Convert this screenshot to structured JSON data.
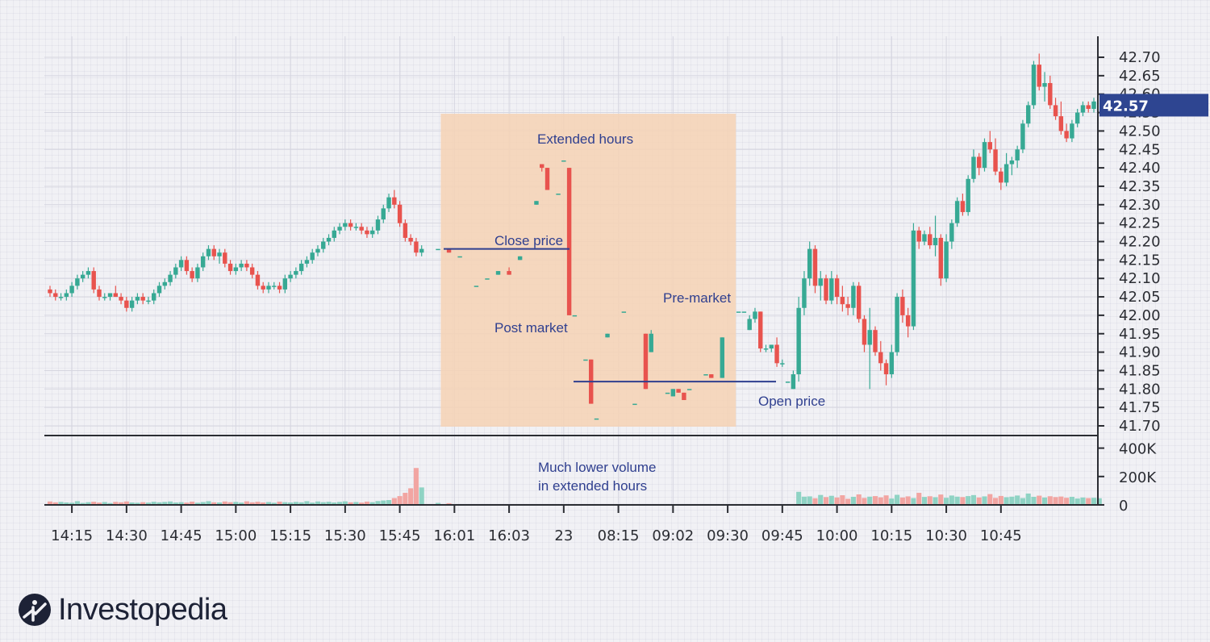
{
  "brand": {
    "name": "Investopedia",
    "logo_icon": "investopedia-logo-icon"
  },
  "colors": {
    "up": "#37a994",
    "down": "#e8534e",
    "up_volume": "#8fd3c4",
    "down_volume": "#f2a5a2",
    "extended_band": "#f6d2b4",
    "annotation": "#2f3f8f",
    "last_price_bg": "#2e4591"
  },
  "chart_data": {
    "type": "candlestick",
    "title": "",
    "xlabel": "",
    "ylabel": "",
    "ylim": [
      41.68,
      42.74
    ],
    "y_ticks": [
      "42.70",
      "42.65",
      "42.60",
      "42.55",
      "42.50",
      "42.45",
      "42.40",
      "42.35",
      "42.30",
      "42.25",
      "42.20",
      "42.15",
      "42.10",
      "42.05",
      "42.00",
      "41.95",
      "41.90",
      "41.85",
      "41.80",
      "41.75",
      "41.70"
    ],
    "volume_ticks": [
      "400K",
      "200K",
      "0"
    ],
    "volume_ylim": [
      0,
      520000
    ],
    "x_ticks": [
      {
        "label": "14:15",
        "index": 4
      },
      {
        "label": "14:30",
        "index": 14
      },
      {
        "label": "14:45",
        "index": 24
      },
      {
        "label": "15:00",
        "index": 34
      },
      {
        "label": "15:15",
        "index": 44
      },
      {
        "label": "15:30",
        "index": 54
      },
      {
        "label": "15:45",
        "index": 64
      },
      {
        "label": "16:01",
        "index": 74
      },
      {
        "label": "16:03",
        "index": 84
      },
      {
        "label": "23",
        "index": 94
      },
      {
        "label": "08:15",
        "index": 104
      },
      {
        "label": "09:02",
        "index": 114
      },
      {
        "label": "09:30",
        "index": 124
      },
      {
        "label": "09:45",
        "index": 134
      },
      {
        "label": "10:00",
        "index": 144
      },
      {
        "label": "10:15",
        "index": 154
      },
      {
        "label": "10:30",
        "index": 164
      },
      {
        "label": "10:45",
        "index": 174
      }
    ],
    "last_price": "42.57",
    "close_price": 42.18,
    "open_price": 41.82,
    "extended_hours": {
      "start_index": 71.5,
      "end_index": 125.5
    },
    "annotations": {
      "extended_hours": "Extended hours",
      "close_price": "Close price",
      "post_market": "Post market",
      "pre_market": "Pre-market",
      "open_price": "Open price",
      "volume_note_line1": "Much lower volume",
      "volume_note_line2": "in extended hours"
    },
    "ohlc": [
      [
        42.07,
        42.08,
        42.05,
        42.06
      ],
      [
        42.06,
        42.07,
        42.04,
        42.05
      ],
      [
        42.05,
        42.06,
        42.04,
        42.05
      ],
      [
        42.05,
        42.07,
        42.04,
        42.06
      ],
      [
        42.06,
        42.09,
        42.05,
        42.08
      ],
      [
        42.08,
        42.11,
        42.07,
        42.1
      ],
      [
        42.1,
        42.12,
        42.09,
        42.11
      ],
      [
        42.11,
        42.13,
        42.1,
        42.12
      ],
      [
        42.12,
        42.13,
        42.06,
        42.07
      ],
      [
        42.07,
        42.08,
        42.04,
        42.05
      ],
      [
        42.05,
        42.06,
        42.04,
        42.05
      ],
      [
        42.05,
        42.06,
        42.04,
        42.06
      ],
      [
        42.06,
        42.08,
        42.05,
        42.05
      ],
      [
        42.05,
        42.06,
        42.03,
        42.04
      ],
      [
        42.04,
        42.05,
        42.01,
        42.02
      ],
      [
        42.02,
        42.05,
        42.01,
        42.04
      ],
      [
        42.04,
        42.06,
        42.03,
        42.05
      ],
      [
        42.05,
        42.06,
        42.03,
        42.04
      ],
      [
        42.04,
        42.05,
        42.03,
        42.04
      ],
      [
        42.04,
        42.07,
        42.03,
        42.06
      ],
      [
        42.06,
        42.09,
        42.05,
        42.08
      ],
      [
        42.08,
        42.1,
        42.07,
        42.09
      ],
      [
        42.09,
        42.12,
        42.08,
        42.11
      ],
      [
        42.11,
        42.14,
        42.1,
        42.13
      ],
      [
        42.13,
        42.16,
        42.12,
        42.15
      ],
      [
        42.15,
        42.16,
        42.11,
        42.12
      ],
      [
        42.12,
        42.13,
        42.09,
        42.1
      ],
      [
        42.1,
        42.14,
        42.09,
        42.13
      ],
      [
        42.13,
        42.17,
        42.12,
        42.16
      ],
      [
        42.16,
        42.19,
        42.15,
        42.18
      ],
      [
        42.18,
        42.19,
        42.15,
        42.16
      ],
      [
        42.16,
        42.18,
        42.14,
        42.17
      ],
      [
        42.17,
        42.18,
        42.13,
        42.14
      ],
      [
        42.14,
        42.15,
        42.11,
        42.12
      ],
      [
        42.12,
        42.14,
        42.11,
        42.13
      ],
      [
        42.13,
        42.15,
        42.12,
        42.14
      ],
      [
        42.14,
        42.15,
        42.12,
        42.13
      ],
      [
        42.13,
        42.14,
        42.1,
        42.11
      ],
      [
        42.11,
        42.12,
        42.07,
        42.08
      ],
      [
        42.08,
        42.09,
        42.06,
        42.07
      ],
      [
        42.07,
        42.09,
        42.06,
        42.08
      ],
      [
        42.08,
        42.09,
        42.07,
        42.08
      ],
      [
        42.08,
        42.09,
        42.06,
        42.07
      ],
      [
        42.07,
        42.11,
        42.06,
        42.1
      ],
      [
        42.1,
        42.12,
        42.09,
        42.11
      ],
      [
        42.11,
        42.13,
        42.1,
        42.12
      ],
      [
        42.12,
        42.15,
        42.11,
        42.14
      ],
      [
        42.14,
        42.16,
        42.13,
        42.15
      ],
      [
        42.15,
        42.18,
        42.14,
        42.17
      ],
      [
        42.17,
        42.19,
        42.16,
        42.18
      ],
      [
        42.18,
        42.21,
        42.17,
        42.2
      ],
      [
        42.2,
        42.22,
        42.19,
        42.21
      ],
      [
        42.21,
        42.24,
        42.2,
        42.23
      ],
      [
        42.23,
        42.25,
        42.22,
        42.24
      ],
      [
        42.24,
        42.26,
        42.23,
        42.25
      ],
      [
        42.25,
        42.26,
        42.23,
        42.24
      ],
      [
        42.24,
        42.25,
        42.23,
        42.24
      ],
      [
        42.24,
        42.25,
        42.22,
        42.23
      ],
      [
        42.23,
        42.24,
        42.21,
        42.22
      ],
      [
        42.22,
        42.24,
        42.21,
        42.23
      ],
      [
        42.23,
        42.27,
        42.22,
        42.26
      ],
      [
        42.26,
        42.3,
        42.25,
        42.29
      ],
      [
        42.29,
        42.33,
        42.28,
        42.32
      ],
      [
        42.32,
        42.34,
        42.29,
        42.3
      ],
      [
        42.3,
        42.31,
        42.24,
        42.25
      ],
      [
        42.25,
        42.26,
        42.2,
        42.21
      ],
      [
        42.21,
        42.22,
        42.19,
        42.2
      ],
      [
        42.2,
        42.21,
        42.16,
        42.17
      ],
      [
        42.17,
        42.19,
        42.16,
        42.18
      ],
      null,
      null,
      [
        42.18,
        42.18,
        42.18,
        42.18
      ],
      null,
      [
        42.18,
        42.18,
        42.17,
        42.17
      ],
      null,
      [
        42.16,
        42.16,
        42.16,
        42.16
      ],
      null,
      null,
      [
        42.08,
        42.08,
        42.08,
        42.08
      ],
      null,
      [
        42.1,
        42.1,
        42.1,
        42.1
      ],
      null,
      [
        42.11,
        42.12,
        42.11,
        42.12
      ],
      null,
      [
        42.12,
        42.13,
        42.11,
        42.11
      ],
      null,
      [
        42.15,
        42.16,
        42.15,
        42.16
      ],
      null,
      null,
      [
        42.3,
        42.31,
        42.3,
        42.31
      ],
      [
        42.41,
        42.41,
        42.39,
        42.4
      ],
      [
        42.4,
        42.4,
        42.34,
        42.34
      ],
      null,
      [
        42.33,
        42.33,
        42.33,
        42.33
      ],
      [
        42.42,
        42.42,
        42.42,
        42.42
      ],
      [
        42.4,
        42.4,
        42.0,
        42.0
      ],
      [
        42.0,
        42.0,
        42.0,
        42.0
      ],
      null,
      [
        41.88,
        41.88,
        41.88,
        41.88
      ],
      [
        41.88,
        41.88,
        41.76,
        41.76
      ],
      [
        41.72,
        41.72,
        41.72,
        41.72
      ],
      null,
      [
        41.94,
        41.95,
        41.94,
        41.95
      ],
      null,
      null,
      [
        42.01,
        42.01,
        42.01,
        42.01
      ],
      null,
      [
        41.76,
        41.76,
        41.76,
        41.76
      ],
      null,
      [
        41.95,
        41.95,
        41.8,
        41.8
      ],
      [
        41.9,
        41.96,
        41.9,
        41.95
      ],
      null,
      null,
      [
        41.79,
        41.79,
        41.79,
        41.79
      ],
      [
        41.78,
        41.8,
        41.78,
        41.8
      ],
      [
        41.8,
        41.8,
        41.79,
        41.79
      ],
      [
        41.79,
        41.79,
        41.77,
        41.77
      ],
      [
        41.8,
        41.8,
        41.8,
        41.8
      ],
      null,
      null,
      [
        41.84,
        41.84,
        41.84,
        41.84
      ],
      [
        41.84,
        41.84,
        41.83,
        41.83
      ],
      null,
      [
        41.83,
        41.94,
        41.83,
        41.94
      ],
      null,
      null,
      [
        42.01,
        42.01,
        42.01,
        42.01
      ],
      [
        42.01,
        42.01,
        42.01,
        42.01
      ],
      [
        41.96,
        42.0,
        41.96,
        41.99
      ],
      [
        41.99,
        42.02,
        41.98,
        42.01
      ],
      [
        42.01,
        42.01,
        41.9,
        41.91
      ],
      [
        41.91,
        41.92,
        41.9,
        41.91
      ],
      [
        41.91,
        41.92,
        41.9,
        41.92
      ],
      [
        41.92,
        41.94,
        41.86,
        41.87
      ],
      [
        41.87,
        41.88,
        41.86,
        41.87
      ],
      [
        41.82,
        41.82,
        41.82,
        41.82
      ],
      [
        41.8,
        41.85,
        41.8,
        41.84
      ],
      [
        41.84,
        42.05,
        41.82,
        42.02
      ],
      [
        42.02,
        42.12,
        42.0,
        42.1
      ],
      [
        42.1,
        42.2,
        42.08,
        42.18
      ],
      [
        42.18,
        42.19,
        42.06,
        42.08
      ],
      [
        42.08,
        42.12,
        42.04,
        42.1
      ],
      [
        42.1,
        42.11,
        42.03,
        42.04
      ],
      [
        42.04,
        42.12,
        42.03,
        42.1
      ],
      [
        42.1,
        42.11,
        42.03,
        42.05
      ],
      [
        42.05,
        42.08,
        42.01,
        42.03
      ],
      [
        42.03,
        42.05,
        42.0,
        42.02
      ],
      [
        42.02,
        42.09,
        42.0,
        42.08
      ],
      [
        42.08,
        42.09,
        41.98,
        41.99
      ],
      [
        41.99,
        42.0,
        41.9,
        41.92
      ],
      [
        41.92,
        42.02,
        41.8,
        41.96
      ],
      [
        41.96,
        41.97,
        41.89,
        41.9
      ],
      [
        41.9,
        41.93,
        41.85,
        41.87
      ],
      [
        41.87,
        41.88,
        41.81,
        41.84
      ],
      [
        41.84,
        41.92,
        41.83,
        41.9
      ],
      [
        41.9,
        42.06,
        41.89,
        42.05
      ],
      [
        42.05,
        42.07,
        41.98,
        42.0
      ],
      [
        42.0,
        42.02,
        41.94,
        41.97
      ],
      [
        41.97,
        42.25,
        41.96,
        42.23
      ],
      [
        42.23,
        42.24,
        42.18,
        42.2
      ],
      [
        42.2,
        42.23,
        42.19,
        42.22
      ],
      [
        42.22,
        42.24,
        42.18,
        42.19
      ],
      [
        42.19,
        42.27,
        42.16,
        42.21
      ],
      [
        42.21,
        42.22,
        42.08,
        42.1
      ],
      [
        42.1,
        42.22,
        42.09,
        42.2
      ],
      [
        42.2,
        42.26,
        42.18,
        42.25
      ],
      [
        42.25,
        42.32,
        42.24,
        42.31
      ],
      [
        42.31,
        42.33,
        42.27,
        42.28
      ],
      [
        42.28,
        42.38,
        42.27,
        42.37
      ],
      [
        42.37,
        42.45,
        42.36,
        42.43
      ],
      [
        42.43,
        42.44,
        42.38,
        42.4
      ],
      [
        42.4,
        42.48,
        42.39,
        42.47
      ],
      [
        42.47,
        42.5,
        42.44,
        42.45
      ],
      [
        42.45,
        42.48,
        42.38,
        42.39
      ],
      [
        42.39,
        42.4,
        42.34,
        42.36
      ],
      [
        42.36,
        42.44,
        42.35,
        42.41
      ],
      [
        42.41,
        42.43,
        42.38,
        42.42
      ],
      [
        42.42,
        42.46,
        42.4,
        42.45
      ],
      [
        42.45,
        42.53,
        42.44,
        42.52
      ],
      [
        42.52,
        42.58,
        42.51,
        42.57
      ],
      [
        42.57,
        42.69,
        42.56,
        42.68
      ],
      [
        42.68,
        42.71,
        42.61,
        42.62
      ],
      [
        42.62,
        42.66,
        42.58,
        42.63
      ],
      [
        42.63,
        42.65,
        42.56,
        42.57
      ],
      [
        42.57,
        42.59,
        42.53,
        42.54
      ],
      [
        42.54,
        42.58,
        42.49,
        42.5
      ],
      [
        42.5,
        42.52,
        42.47,
        42.48
      ],
      [
        42.48,
        42.53,
        42.47,
        42.52
      ],
      [
        42.52,
        42.56,
        42.51,
        42.55
      ],
      [
        42.55,
        42.58,
        42.54,
        42.57
      ],
      [
        42.57,
        42.58,
        42.55,
        42.56
      ],
      [
        42.56,
        42.59,
        42.55,
        42.58
      ]
    ],
    "volume": [
      24000,
      18000,
      21000,
      17000,
      15000,
      26000,
      14000,
      19000,
      22000,
      16000,
      20000,
      13000,
      21000,
      18000,
      24000,
      17000,
      15000,
      19000,
      16000,
      22000,
      18000,
      21000,
      24000,
      17000,
      19000,
      16000,
      23000,
      15000,
      20000,
      26000,
      18000,
      17000,
      24000,
      19000,
      21000,
      16000,
      25000,
      18000,
      22000,
      17000,
      20000,
      15000,
      23000,
      19000,
      17000,
      21000,
      18000,
      26000,
      16000,
      24000,
      19000,
      22000,
      17000,
      21000,
      25000,
      18000,
      20000,
      16000,
      23000,
      19000,
      27000,
      31000,
      34000,
      48000,
      62000,
      85000,
      117000,
      260000,
      123000,
      0,
      0,
      14000,
      0,
      12000,
      0,
      0,
      0,
      0,
      0,
      0,
      0,
      0,
      0,
      0,
      0,
      0,
      0,
      0,
      0,
      0,
      0,
      0,
      0,
      0,
      0,
      0,
      0,
      0,
      0,
      0,
      0,
      0,
      0,
      0,
      0,
      0,
      0,
      0,
      0,
      0,
      0,
      0,
      0,
      0,
      0,
      0,
      0,
      0,
      0,
      0,
      0,
      0,
      0,
      0,
      0,
      0,
      0,
      0,
      0,
      0,
      0,
      0,
      0,
      0,
      0,
      0,
      0,
      92000,
      58000,
      60000,
      47000,
      70000,
      55000,
      64000,
      52000,
      68000,
      43000,
      57000,
      74000,
      49000,
      58000,
      62000,
      53000,
      67000,
      45000,
      71000,
      52000,
      60000,
      48000,
      85000,
      56000,
      61000,
      54000,
      73000,
      50000,
      66000,
      58000,
      55000,
      62000,
      69000,
      52000,
      60000,
      76000,
      49000,
      63000,
      54000,
      58000,
      66000,
      48000,
      80000,
      57000,
      65000,
      52000,
      61000,
      55000,
      59000,
      50000,
      57000,
      45000,
      52000,
      48000,
      50000,
      47000
    ]
  }
}
